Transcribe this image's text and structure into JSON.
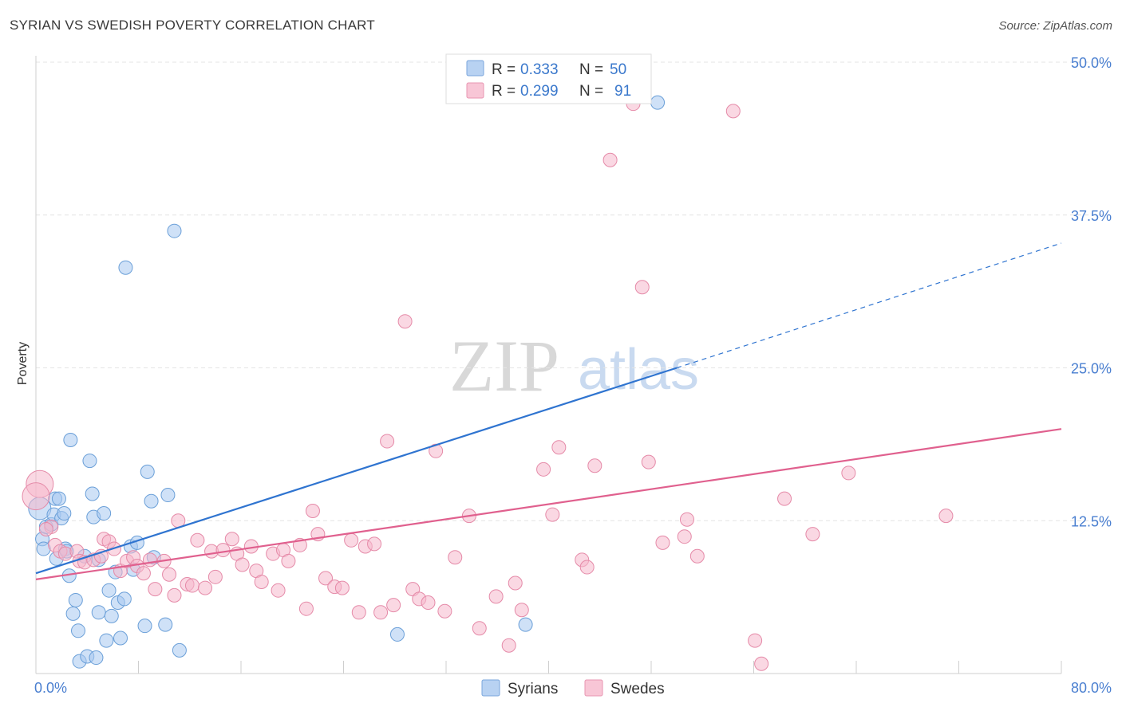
{
  "header": {
    "title": "SYRIAN VS SWEDISH POVERTY CORRELATION CHART",
    "source": "Source: ZipAtlas.com"
  },
  "watermark": {
    "zip": "ZIP",
    "atlas": "atlas"
  },
  "legend_top": {
    "rows": [
      {
        "r_label": "R =",
        "r_value": "0.333",
        "n_label": "N =",
        "n_value": "50"
      },
      {
        "r_label": "R =",
        "r_value": "0.299",
        "n_label": "N =",
        "n_value": "91"
      }
    ]
  },
  "legend_bottom": {
    "items": [
      "Syrians",
      "Swedes"
    ]
  },
  "colors": {
    "syrians_fill": "#a8c8f0",
    "syrians_stroke": "#6a9fd8",
    "syrians_line": "#2f74d0",
    "swedes_fill": "#f6b8cc",
    "swedes_stroke": "#e58aa8",
    "swedes_line": "#e0608e",
    "tick_label": "#4a7fd0",
    "grid": "#e4e4e4"
  },
  "chart_data": {
    "type": "scatter",
    "title": "SYRIAN VS SWEDISH POVERTY CORRELATION CHART",
    "xlabel": "",
    "ylabel": "Poverty",
    "xlim": [
      0,
      80
    ],
    "ylim": [
      0,
      50
    ],
    "x_tick_labels": [
      "0.0%",
      "80.0%"
    ],
    "y_ticks": [
      12.5,
      25.0,
      37.5,
      50.0
    ],
    "y_tick_labels": [
      "12.5%",
      "25.0%",
      "37.5%",
      "50.0%"
    ],
    "series": [
      {
        "name": "Syrians",
        "r": 0.333,
        "n": 50,
        "trend": {
          "x0": 0,
          "y0": 8.2,
          "x1": 50,
          "y1": 25.0,
          "dashed_to_x": 80,
          "dashed_to_y": 35.2
        },
        "points": [
          [
            0.3,
            13.5
          ],
          [
            0.5,
            11
          ],
          [
            0.6,
            10.2
          ],
          [
            0.8,
            12
          ],
          [
            1.2,
            12.2
          ],
          [
            1.4,
            13
          ],
          [
            1.5,
            14.3
          ],
          [
            1.6,
            9.4
          ],
          [
            1.8,
            14.3
          ],
          [
            2.0,
            12.7
          ],
          [
            2.2,
            13.1
          ],
          [
            2.3,
            10.2
          ],
          [
            2.4,
            10
          ],
          [
            2.6,
            8
          ],
          [
            2.7,
            19.1
          ],
          [
            2.9,
            4.9
          ],
          [
            3.1,
            6
          ],
          [
            3.3,
            3.5
          ],
          [
            3.4,
            1
          ],
          [
            3.8,
            9.6
          ],
          [
            4.0,
            1.4
          ],
          [
            4.2,
            17.4
          ],
          [
            4.4,
            14.7
          ],
          [
            4.5,
            12.8
          ],
          [
            4.7,
            1.3
          ],
          [
            4.9,
            9.3
          ],
          [
            4.9,
            5
          ],
          [
            5.3,
            13.1
          ],
          [
            5.5,
            2.7
          ],
          [
            5.7,
            6.8
          ],
          [
            5.9,
            4.7
          ],
          [
            6.2,
            8.3
          ],
          [
            6.4,
            5.8
          ],
          [
            6.6,
            2.9
          ],
          [
            6.9,
            6.1
          ],
          [
            7.0,
            33.2
          ],
          [
            7.4,
            10.4
          ],
          [
            7.6,
            8.5
          ],
          [
            7.9,
            10.7
          ],
          [
            8.5,
            3.9
          ],
          [
            8.7,
            16.5
          ],
          [
            9.0,
            14.1
          ],
          [
            9.2,
            9.5
          ],
          [
            10.1,
            4
          ],
          [
            10.3,
            14.6
          ],
          [
            10.8,
            36.2
          ],
          [
            11.2,
            1.9
          ],
          [
            28.2,
            3.2
          ],
          [
            38.2,
            4
          ],
          [
            48.5,
            46.7
          ]
        ]
      },
      {
        "name": "Swedes",
        "r": 0.299,
        "n": 91,
        "trend": {
          "x0": 0,
          "y0": 7.7,
          "x1": 80,
          "y1": 20.0
        },
        "points": [
          [
            0.3,
            15.5
          ],
          [
            1.2,
            12
          ],
          [
            1.5,
            10.5
          ],
          [
            1.9,
            10
          ],
          [
            2.3,
            9.8
          ],
          [
            3.2,
            10
          ],
          [
            3.4,
            9.2
          ],
          [
            3.8,
            9.1
          ],
          [
            4.5,
            9.3
          ],
          [
            5.1,
            9.6
          ],
          [
            5.3,
            11
          ],
          [
            5.7,
            10.8
          ],
          [
            6.1,
            10.2
          ],
          [
            6.6,
            8.4
          ],
          [
            7.1,
            9.2
          ],
          [
            7.6,
            9.5
          ],
          [
            7.9,
            8.8
          ],
          [
            8.4,
            8.2
          ],
          [
            8.9,
            9.3
          ],
          [
            9.3,
            6.9
          ],
          [
            10.0,
            9.2
          ],
          [
            10.4,
            8.1
          ],
          [
            10.8,
            6.4
          ],
          [
            11.1,
            12.5
          ],
          [
            11.8,
            7.3
          ],
          [
            12.2,
            7.2
          ],
          [
            12.6,
            10.9
          ],
          [
            13.2,
            7
          ],
          [
            13.7,
            10
          ],
          [
            14.0,
            7.9
          ],
          [
            14.6,
            10.1
          ],
          [
            15.3,
            11
          ],
          [
            15.7,
            9.8
          ],
          [
            16.1,
            8.9
          ],
          [
            16.8,
            10.4
          ],
          [
            17.2,
            8.4
          ],
          [
            17.6,
            7.5
          ],
          [
            18.5,
            9.8
          ],
          [
            18.9,
            6.8
          ],
          [
            19.3,
            10.1
          ],
          [
            19.7,
            9.2
          ],
          [
            20.6,
            10.5
          ],
          [
            21.1,
            5.3
          ],
          [
            21.6,
            13.3
          ],
          [
            22.0,
            11.4
          ],
          [
            22.6,
            7.8
          ],
          [
            23.3,
            7.1
          ],
          [
            23.9,
            7
          ],
          [
            24.6,
            10.9
          ],
          [
            25.2,
            5
          ],
          [
            25.7,
            10.4
          ],
          [
            26.4,
            10.6
          ],
          [
            26.9,
            5
          ],
          [
            27.4,
            19
          ],
          [
            27.9,
            5.6
          ],
          [
            28.8,
            28.8
          ],
          [
            29.4,
            6.9
          ],
          [
            29.9,
            6.1
          ],
          [
            30.6,
            5.8
          ],
          [
            31.2,
            18.2
          ],
          [
            31.9,
            5.1
          ],
          [
            32.7,
            9.5
          ],
          [
            33.8,
            12.9
          ],
          [
            34.6,
            3.7
          ],
          [
            35.9,
            6.3
          ],
          [
            36.9,
            2.3
          ],
          [
            37.4,
            7.4
          ],
          [
            37.9,
            5.2
          ],
          [
            39.6,
            16.7
          ],
          [
            40.3,
            13
          ],
          [
            40.8,
            18.5
          ],
          [
            42.6,
            9.3
          ],
          [
            43.0,
            8.7
          ],
          [
            43.6,
            17
          ],
          [
            44.8,
            42
          ],
          [
            46.6,
            46.6
          ],
          [
            47.3,
            31.6
          ],
          [
            47.8,
            17.3
          ],
          [
            48.9,
            10.7
          ],
          [
            50.6,
            11.2
          ],
          [
            50.8,
            12.6
          ],
          [
            51.6,
            9.6
          ],
          [
            54.4,
            46
          ],
          [
            56.1,
            2.7
          ],
          [
            56.6,
            0.8
          ],
          [
            58.4,
            14.3
          ],
          [
            60.6,
            11.4
          ],
          [
            63.4,
            16.4
          ],
          [
            71.0,
            12.9
          ],
          [
            0.0,
            14.5
          ],
          [
            0.8,
            11.8
          ]
        ]
      }
    ]
  }
}
